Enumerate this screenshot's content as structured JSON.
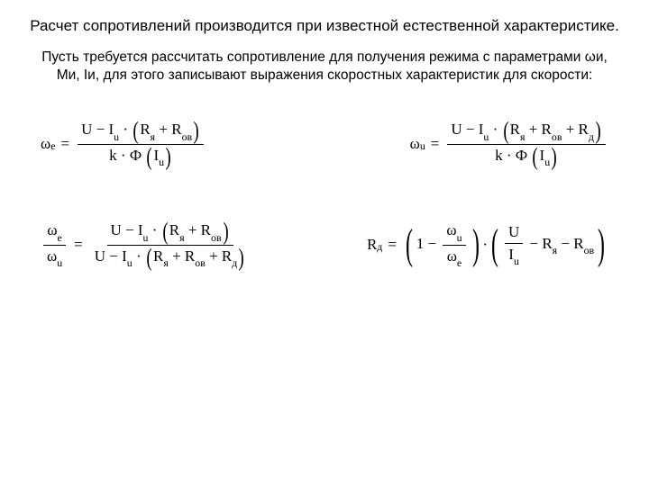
{
  "title": "Расчет сопротивлений производится при известной естественной характеристике.",
  "subtitle": "Пусть требуется рассчитать сопротивление для получения режима с параметрами ωи, Ми, Iи, для этого записывают выражения скоростных характеристик для скорости:",
  "sym": {
    "omega": "ω",
    "e": "e",
    "u": "u",
    "U": "U",
    "I": "I",
    "R": "R",
    "ya": "я",
    "ov": "ов",
    "d": "д",
    "k": "k",
    "Phi": "Ф",
    "eq": "=",
    "minus": "−",
    "plus": "+",
    "dot": "·",
    "one": "1"
  }
}
